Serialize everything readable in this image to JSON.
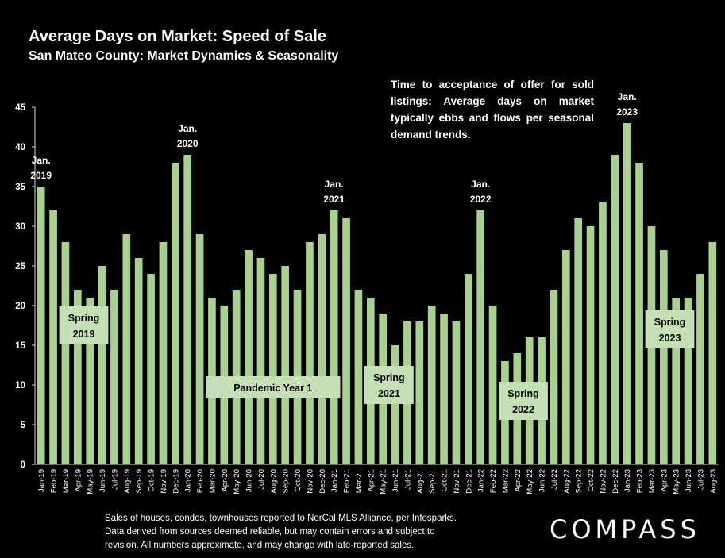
{
  "chart_data": {
    "type": "bar",
    "title": "Average Days on Market:  Speed of Sale",
    "subtitle": "San Mateo County: Market Dynamics & Seasonality",
    "ylim": [
      0,
      45
    ],
    "yticks": [
      0,
      5,
      10,
      15,
      20,
      25,
      30,
      35,
      40,
      45
    ],
    "bar_color": "#a9d18e",
    "categories": [
      "Jan-19",
      "Feb-19",
      "Mar-19",
      "Apr-19",
      "May-19",
      "Jun-19",
      "Jul-19",
      "Aug-19",
      "Sep-19",
      "Oct-19",
      "Nov-19",
      "Dec-19",
      "Jan-20",
      "Feb-20",
      "Mar-20",
      "Apr-20",
      "May-20",
      "Jun-20",
      "Jul-20",
      "Aug-20",
      "Sep-20",
      "Oct-20",
      "Nov-20",
      "Dec-20",
      "Jan-21",
      "Feb-21",
      "Mar-21",
      "Apr-21",
      "May-21",
      "Jun-21",
      "Jul-21",
      "Aug-21",
      "Sep-21",
      "Oct-21",
      "Nov-21",
      "Dec-21",
      "Jan-22",
      "Feb-22",
      "Mar-22",
      "Apr-22",
      "May-22",
      "Jun-22",
      "Jul-22",
      "Aug-22",
      "Sep-22",
      "Oct-22",
      "Nov-22",
      "Dec-22",
      "Jan-23",
      "Feb-23",
      "Mar-23",
      "Apr-23",
      "May-23",
      "Jun-23",
      "Jul-23",
      "Aug-23"
    ],
    "values": [
      35,
      32,
      28,
      22,
      21,
      25,
      22,
      29,
      26,
      24,
      28,
      38,
      39,
      29,
      21,
      20,
      22,
      27,
      26,
      24,
      25,
      22,
      28,
      29,
      32,
      31,
      22,
      21,
      19,
      15,
      18,
      18,
      20,
      19,
      18,
      24,
      32,
      20,
      13,
      14,
      16,
      16,
      22,
      27,
      31,
      30,
      33,
      39,
      43,
      38,
      30,
      27,
      21,
      21,
      24,
      28
    ],
    "annotations": [
      {
        "lines": [
          "Jan.",
          "2019"
        ],
        "index": 0,
        "value": 35
      },
      {
        "lines": [
          "Jan.",
          "2020"
        ],
        "index": 12,
        "value": 39
      },
      {
        "lines": [
          "Jan.",
          "2021"
        ],
        "index": 24,
        "value": 32
      },
      {
        "lines": [
          "Jan.",
          "2022"
        ],
        "index": 36,
        "value": 32
      },
      {
        "lines": [
          "Jan.",
          "2023"
        ],
        "index": 48,
        "value": 43
      }
    ],
    "season_boxes": [
      {
        "lines": [
          "Spring",
          "2019"
        ],
        "from": 2,
        "to": 5,
        "value": 17.5
      },
      {
        "lines": [
          "Pandemic Year 1"
        ],
        "from": 14,
        "to": 24,
        "value": 9.7
      },
      {
        "lines": [
          "Spring",
          "2021"
        ],
        "from": 27,
        "to": 30,
        "value": 10
      },
      {
        "lines": [
          "Spring",
          "2022"
        ],
        "from": 38,
        "to": 41,
        "value": 8
      },
      {
        "lines": [
          "Spring",
          "2023"
        ],
        "from": 50,
        "to": 53,
        "value": 17
      }
    ]
  },
  "note": "Time to acceptance of offer for sold listings: Average days on market typically ebbs and flows per seasonal demand trends.",
  "footnote": {
    "line1": "Sales of houses, condos, townhouses reported to NorCal MLS Alliance, per Infosparks.",
    "line2": "Data derived from sources deemed reliable, but may contain errors and subject to",
    "line3": "revision. All numbers approximate, and may change with late-reported sales."
  },
  "logo": "COMPASS"
}
